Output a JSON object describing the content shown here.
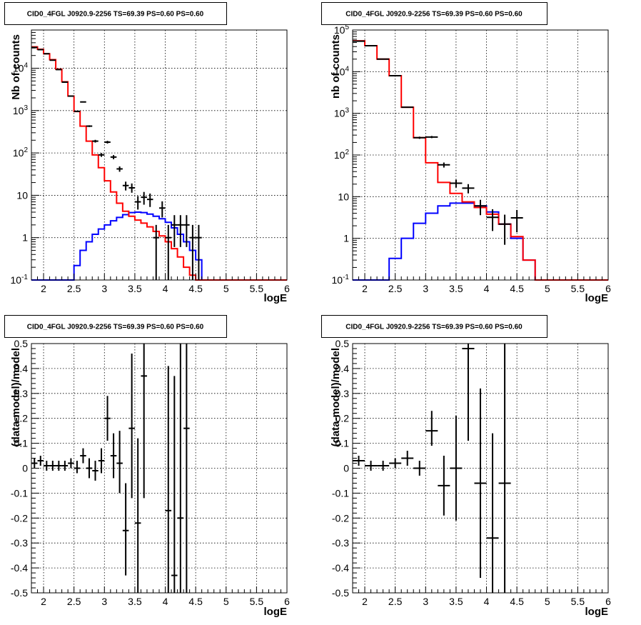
{
  "chart_data": [
    {
      "id": "counts-left",
      "type": "line",
      "title": "CID0_4FGL J0920.9-2256 TS=69.39 PS=0.60 PS=0.60",
      "xlabel": "logE",
      "ylabel": "Nb of counts",
      "xlim": [
        1.8,
        6.0
      ],
      "ylim": [
        0.1,
        80000
      ],
      "yscale": "log",
      "grid": true,
      "x_ticks": [
        2,
        2.5,
        3,
        3.5,
        4,
        4.5,
        5,
        5.5,
        6
      ],
      "x_tick_labels": [
        "2",
        "2.5",
        "3",
        "3.5",
        "4",
        "4.5",
        "5",
        "5.5",
        "6"
      ],
      "y_ticks": [
        0.1,
        1,
        10,
        100,
        1000,
        10000
      ],
      "y_tick_labels": [
        "10^-1",
        "1",
        "10",
        "10^2",
        "10^3",
        "10^4"
      ],
      "bin_width": 0.1,
      "bin_starts": [
        1.8,
        1.9,
        2.0,
        2.1,
        2.2,
        2.3,
        2.4,
        2.5,
        2.6,
        2.7,
        2.8,
        2.9,
        3.0,
        3.1,
        3.2,
        3.3,
        3.4,
        3.5,
        3.6,
        3.7,
        3.8,
        3.9,
        4.0,
        4.1,
        4.2,
        4.3,
        4.4,
        4.5,
        4.6,
        4.7,
        4.8,
        4.9,
        5.0,
        5.1,
        5.2,
        5.3,
        5.4,
        5.5,
        5.6,
        5.7,
        5.8,
        5.9
      ],
      "series": [
        {
          "role": "total-model",
          "color": "#ff0000",
          "values": [
            32000,
            28000,
            22000,
            16000,
            9500,
            4800,
            2200,
            950,
            430,
            190,
            90,
            45,
            22,
            12,
            6.5,
            4.2,
            3.2,
            2.6,
            2.2,
            1.8,
            1.4,
            1.1,
            0.8,
            0.55,
            0.35,
            0.2,
            0.13,
            0.1,
            0.1,
            0.1,
            0.1,
            0.1,
            0.1,
            0.1,
            0.1,
            0.1,
            0.1,
            0.1,
            0.1,
            0.1,
            0.1,
            0.1
          ]
        },
        {
          "role": "source-model",
          "color": "#0000ff",
          "values": [
            0.1,
            0.1,
            0.1,
            0.1,
            0.1,
            0.1,
            0.1,
            0.1,
            0.1,
            0.1,
            0.1,
            0.1,
            0.1,
            0.1,
            0.1,
            0.1,
            0.1,
            0.1,
            0.1,
            0.1,
            0.1,
            0.1,
            0.1,
            0.1,
            0.1,
            0.1,
            0.1,
            0.1,
            0.1,
            0.1,
            0.1,
            0.1,
            0.1,
            0.1,
            0.1,
            0.1,
            0.1,
            0.1,
            0.1,
            0.1,
            0.1,
            0.1
          ]
        }
      ],
      "source_values": [
        0.1,
        0.1,
        0.1,
        0.1,
        0.1,
        0.1,
        0.1,
        0.22,
        0.5,
        0.8,
        1.2,
        1.6,
        2.0,
        2.5,
        3.0,
        3.5,
        3.9,
        4.0,
        3.9,
        3.6,
        3.2,
        2.8,
        2.3,
        1.7,
        1.2,
        0.8,
        0.5,
        0.3,
        0.1,
        0.1,
        0.1,
        0.1,
        0.1,
        0.1,
        0.1,
        0.1,
        0.1,
        0.1,
        0.1,
        0.1,
        0.1,
        0.1
      ],
      "data_points": [
        {
          "x": 1.85,
          "y": 31000,
          "ylo": 30600,
          "yhi": 31400
        },
        {
          "x": 1.95,
          "y": 27500,
          "ylo": 27100,
          "yhi": 27900
        },
        {
          "x": 2.05,
          "y": 22000,
          "ylo": 21700,
          "yhi": 22300
        },
        {
          "x": 2.15,
          "y": 15500,
          "ylo": 15250,
          "yhi": 15750
        },
        {
          "x": 2.25,
          "y": 9300,
          "ylo": 9100,
          "yhi": 9500
        },
        {
          "x": 2.35,
          "y": 4700,
          "ylo": 4600,
          "yhi": 4800
        },
        {
          "x": 2.45,
          "y": 2200,
          "ylo": 2150,
          "yhi": 2250
        },
        {
          "x": 2.55,
          "y": 960,
          "ylo": 930,
          "yhi": 990
        },
        {
          "x": 2.65,
          "y": 1600,
          "ylo": 1560,
          "yhi": 1640
        },
        {
          "x": 2.75,
          "y": 430,
          "ylo": 410,
          "yhi": 450
        },
        {
          "x": 2.85,
          "y": 190,
          "ylo": 176,
          "yhi": 204
        },
        {
          "x": 2.95,
          "y": 90,
          "ylo": 81,
          "yhi": 99
        },
        {
          "x": 3.05,
          "y": 180,
          "ylo": 167,
          "yhi": 193
        },
        {
          "x": 3.15,
          "y": 80,
          "ylo": 71,
          "yhi": 89
        },
        {
          "x": 3.25,
          "y": 42,
          "ylo": 36,
          "yhi": 48
        },
        {
          "x": 3.35,
          "y": 17,
          "ylo": 13,
          "yhi": 21
        },
        {
          "x": 3.45,
          "y": 15,
          "ylo": 11.5,
          "yhi": 19
        },
        {
          "x": 3.55,
          "y": 7,
          "ylo": 4.6,
          "yhi": 9.6
        },
        {
          "x": 3.65,
          "y": 9,
          "ylo": 6,
          "yhi": 12
        },
        {
          "x": 3.75,
          "y": 8,
          "ylo": 5.3,
          "yhi": 11
        },
        {
          "x": 3.85,
          "y": 1,
          "ylo": 0.1,
          "yhi": 2
        },
        {
          "x": 3.95,
          "y": 5,
          "ylo": 3,
          "yhi": 7.2
        },
        {
          "x": 4.05,
          "y": 1,
          "ylo": 0.1,
          "yhi": 2
        },
        {
          "x": 4.15,
          "y": 2,
          "ylo": 0.6,
          "yhi": 3.4
        },
        {
          "x": 4.25,
          "y": 2,
          "ylo": 0.6,
          "yhi": 3.4
        },
        {
          "x": 4.35,
          "y": 2,
          "ylo": 0.6,
          "yhi": 3.4
        },
        {
          "x": 4.45,
          "y": 1,
          "ylo": 0.1,
          "yhi": 2
        },
        {
          "x": 4.55,
          "y": 1,
          "ylo": 0.1,
          "yhi": 2
        }
      ]
    },
    {
      "id": "counts-right",
      "type": "line",
      "title": "CID0_4FGL J0920.9-2256 TS=69.39 PS=0.60 PS=0.60",
      "xlabel": "logE",
      "ylabel": "nb of counts",
      "xlim": [
        1.8,
        6.0
      ],
      "ylim": [
        0.1,
        100000
      ],
      "yscale": "log",
      "grid": true,
      "x_ticks": [
        2,
        2.5,
        3,
        3.5,
        4,
        4.5,
        5,
        5.5,
        6
      ],
      "x_tick_labels": [
        "2",
        "2.5",
        "3",
        "3.5",
        "4",
        "4.5",
        "5",
        "5.5",
        "6"
      ],
      "y_ticks": [
        0.1,
        1,
        10,
        100,
        1000,
        10000,
        100000
      ],
      "y_tick_labels": [
        "10^-1",
        "1",
        "10",
        "10^2",
        "10^3",
        "10^4",
        "10^5"
      ],
      "bin_width": 0.2,
      "bin_starts": [
        1.8,
        2.0,
        2.2,
        2.4,
        2.6,
        2.8,
        3.0,
        3.2,
        3.4,
        3.6,
        3.8,
        4.0,
        4.2,
        4.4,
        4.6,
        4.8,
        5.0,
        5.2,
        5.4,
        5.6,
        5.8
      ],
      "series": [
        {
          "role": "total-model",
          "color": "#ff0000",
          "values": [
            55000,
            42000,
            20000,
            8000,
            1400,
            260,
            65,
            22,
            12,
            7.5,
            5.5,
            3.8,
            2.2,
            1.1,
            0.3,
            0.1,
            0.1,
            0.1,
            0.1,
            0.1,
            0.1
          ]
        },
        {
          "role": "source-model",
          "color": "#0000ff",
          "values": [
            0.1,
            0.1,
            0.1,
            0.1,
            0.1,
            0.1,
            0.1,
            0.1,
            0.1,
            0.1,
            0.1,
            0.1,
            0.1,
            0.1,
            0.1,
            0.1,
            0.1,
            0.1,
            0.1,
            0.1,
            0.1
          ]
        }
      ],
      "source_values": [
        0.1,
        0.1,
        0.1,
        0.33,
        1.0,
        2.3,
        4.0,
        6.0,
        7.0,
        7.0,
        6.0,
        4.3,
        2.2,
        1.0,
        0.3,
        0.1,
        0.1,
        0.1,
        0.1,
        0.1,
        0.1
      ],
      "data_points": [
        {
          "x": 1.9,
          "y": 54000,
          "ylo": 53500,
          "yhi": 54500
        },
        {
          "x": 2.1,
          "y": 42000,
          "ylo": 41500,
          "yhi": 42500
        },
        {
          "x": 2.3,
          "y": 20000,
          "ylo": 19700,
          "yhi": 20300
        },
        {
          "x": 2.5,
          "y": 8000,
          "ylo": 7850,
          "yhi": 8150
        },
        {
          "x": 2.7,
          "y": 1400,
          "ylo": 1360,
          "yhi": 1440
        },
        {
          "x": 2.9,
          "y": 260,
          "ylo": 244,
          "yhi": 276
        },
        {
          "x": 3.1,
          "y": 270,
          "ylo": 254,
          "yhi": 286
        },
        {
          "x": 3.3,
          "y": 58,
          "ylo": 50,
          "yhi": 66
        },
        {
          "x": 3.5,
          "y": 21,
          "ylo": 16.5,
          "yhi": 25.5
        },
        {
          "x": 3.7,
          "y": 16,
          "ylo": 12,
          "yhi": 20
        },
        {
          "x": 3.9,
          "y": 6,
          "ylo": 3.6,
          "yhi": 8.4
        },
        {
          "x": 4.1,
          "y": 3.2,
          "ylo": 1.5,
          "yhi": 5
        },
        {
          "x": 4.3,
          "y": 2.2,
          "ylo": 0.7,
          "yhi": 3.7
        },
        {
          "x": 4.5,
          "y": 3.1,
          "ylo": 1.4,
          "yhi": 4.8
        }
      ]
    },
    {
      "id": "residuals-left",
      "type": "scatter",
      "title": "CID0_4FGL J0920.9-2256 TS=69.39 PS=0.60 PS=0.60",
      "xlabel": "logE",
      "ylabel": "(data-model)/model",
      "xlim": [
        1.8,
        6.0
      ],
      "ylim": [
        -0.5,
        0.5
      ],
      "yscale": "linear",
      "grid": true,
      "x_ticks": [
        2,
        2.5,
        3,
        3.5,
        4,
        4.5,
        5,
        5.5,
        6
      ],
      "x_tick_labels": [
        "2",
        "2.5",
        "3",
        "3.5",
        "4",
        "4.5",
        "5",
        "5.5",
        "6"
      ],
      "y_ticks": [
        -0.5,
        -0.4,
        -0.3,
        -0.2,
        -0.1,
        0,
        0.1,
        0.2,
        0.3,
        0.4,
        0.5
      ],
      "y_tick_labels": [
        "-0.5",
        "-0.4",
        "-0.3",
        "-0.2",
        "-0.1",
        "0",
        "0.1",
        "0.2",
        "0.3",
        "0.4",
        "0.5"
      ],
      "xerr": 0.05,
      "data_points": [
        {
          "x": 1.85,
          "y": 0.02,
          "ylo": 0.0,
          "yhi": 0.04
        },
        {
          "x": 1.95,
          "y": 0.03,
          "ylo": 0.01,
          "yhi": 0.05
        },
        {
          "x": 2.05,
          "y": 0.01,
          "ylo": -0.01,
          "yhi": 0.03
        },
        {
          "x": 2.15,
          "y": 0.01,
          "ylo": -0.01,
          "yhi": 0.03
        },
        {
          "x": 2.25,
          "y": 0.01,
          "ylo": -0.01,
          "yhi": 0.03
        },
        {
          "x": 2.35,
          "y": 0.01,
          "ylo": -0.01,
          "yhi": 0.03
        },
        {
          "x": 2.45,
          "y": 0.02,
          "ylo": 0.0,
          "yhi": 0.04
        },
        {
          "x": 2.55,
          "y": 0.0,
          "ylo": -0.02,
          "yhi": 0.03
        },
        {
          "x": 2.65,
          "y": 0.05,
          "ylo": 0.02,
          "yhi": 0.08
        },
        {
          "x": 2.75,
          "y": 0.0,
          "ylo": -0.04,
          "yhi": 0.04
        },
        {
          "x": 2.85,
          "y": -0.01,
          "ylo": -0.05,
          "yhi": 0.03
        },
        {
          "x": 2.95,
          "y": 0.03,
          "ylo": -0.02,
          "yhi": 0.08
        },
        {
          "x": 3.05,
          "y": 0.2,
          "ylo": 0.11,
          "yhi": 0.29
        },
        {
          "x": 3.15,
          "y": 0.05,
          "ylo": -0.04,
          "yhi": 0.14
        },
        {
          "x": 3.25,
          "y": 0.02,
          "ylo": -0.1,
          "yhi": 0.15
        },
        {
          "x": 3.35,
          "y": -0.25,
          "ylo": -0.43,
          "yhi": -0.06
        },
        {
          "x": 3.45,
          "y": 0.16,
          "ylo": -0.12,
          "yhi": 0.46
        },
        {
          "x": 3.55,
          "y": -0.22,
          "ylo": -0.5,
          "yhi": 0.12
        },
        {
          "x": 3.65,
          "y": 0.37,
          "ylo": -0.12,
          "yhi": 0.5
        },
        {
          "x": 4.05,
          "y": -0.17,
          "ylo": -0.5,
          "yhi": 0.41
        },
        {
          "x": 4.15,
          "y": -0.43,
          "ylo": -0.5,
          "yhi": 0.37
        },
        {
          "x": 4.25,
          "y": -0.2,
          "ylo": -0.5,
          "yhi": 0.5
        },
        {
          "x": 4.35,
          "y": 0.16,
          "ylo": -0.5,
          "yhi": 0.5
        }
      ]
    },
    {
      "id": "residuals-right",
      "type": "scatter",
      "title": "CID0_4FGL J0920.9-2256 TS=69.39 PS=0.60 PS=0.60",
      "xlabel": "logE",
      "ylabel": "(data-model)/model",
      "xlim": [
        1.8,
        6.0
      ],
      "ylim": [
        -0.5,
        0.5
      ],
      "yscale": "linear",
      "grid": true,
      "x_ticks": [
        2,
        2.5,
        3,
        3.5,
        4,
        4.5,
        5,
        5.5,
        6
      ],
      "x_tick_labels": [
        "2",
        "2.5",
        "3",
        "3.5",
        "4",
        "4.5",
        "5",
        "5.5",
        "6"
      ],
      "y_ticks": [
        -0.5,
        -0.4,
        -0.3,
        -0.2,
        -0.1,
        0,
        0.1,
        0.2,
        0.3,
        0.4,
        0.5
      ],
      "y_tick_labels": [
        "-0.5",
        "-0.4",
        "-0.3",
        "-0.2",
        "-0.1",
        "0",
        "0.1",
        "0.2",
        "0.3",
        "0.4",
        "0.5"
      ],
      "xerr": 0.1,
      "data_points": [
        {
          "x": 1.9,
          "y": 0.03,
          "ylo": 0.01,
          "yhi": 0.05
        },
        {
          "x": 2.1,
          "y": 0.01,
          "ylo": -0.01,
          "yhi": 0.03
        },
        {
          "x": 2.3,
          "y": 0.01,
          "ylo": -0.01,
          "yhi": 0.03
        },
        {
          "x": 2.5,
          "y": 0.02,
          "ylo": 0.0,
          "yhi": 0.04
        },
        {
          "x": 2.7,
          "y": 0.04,
          "ylo": 0.01,
          "yhi": 0.07
        },
        {
          "x": 2.9,
          "y": 0.0,
          "ylo": -0.03,
          "yhi": 0.03
        },
        {
          "x": 3.1,
          "y": 0.15,
          "ylo": 0.09,
          "yhi": 0.23
        },
        {
          "x": 3.3,
          "y": -0.07,
          "ylo": -0.19,
          "yhi": 0.05
        },
        {
          "x": 3.5,
          "y": 0.0,
          "ylo": -0.21,
          "yhi": 0.21
        },
        {
          "x": 3.7,
          "y": 0.48,
          "ylo": 0.11,
          "yhi": 0.5
        },
        {
          "x": 3.9,
          "y": -0.06,
          "ylo": -0.44,
          "yhi": 0.32
        },
        {
          "x": 4.1,
          "y": -0.28,
          "ylo": -0.5,
          "yhi": 0.14
        },
        {
          "x": 4.3,
          "y": -0.06,
          "ylo": -0.5,
          "yhi": 0.5
        }
      ]
    }
  ]
}
